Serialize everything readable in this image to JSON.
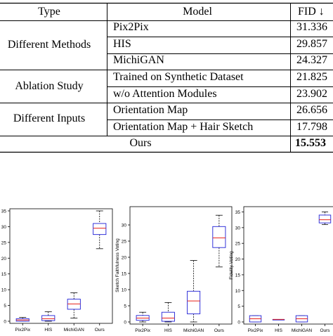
{
  "table": {
    "headers": {
      "type": "Type",
      "model": "Model",
      "fid": "FID ↓"
    },
    "groups": [
      {
        "type": "Different Methods",
        "rows": [
          {
            "model": "Pix2Pix",
            "fid": "31.336"
          },
          {
            "model": "HIS",
            "fid": "29.857"
          },
          {
            "model": "MichiGAN",
            "fid": "24.327"
          }
        ]
      },
      {
        "type": "Ablation Study",
        "rows": [
          {
            "model": "Trained on Synthetic Dataset",
            "fid": "21.825"
          },
          {
            "model": "w/o Attention Modules",
            "fid": "23.902"
          }
        ]
      },
      {
        "type": "Different Inputs",
        "rows": [
          {
            "model": "Orientation Map",
            "fid": "26.656"
          },
          {
            "model": "Orientation Map + Hair Sketch",
            "fid": "17.798"
          }
        ]
      }
    ],
    "final": {
      "label": "Ours",
      "fid": "15.553"
    }
  },
  "chart_data": [
    {
      "type": "box",
      "ylabel": "",
      "ylim": [
        0,
        35
      ],
      "yticks": [
        0,
        5,
        10,
        15,
        20,
        25,
        30,
        35
      ],
      "categories": [
        "Pix2Pix",
        "HIS",
        "MichiGAN",
        "Ours"
      ],
      "boxes": [
        {
          "min": 0,
          "q1": 0,
          "median": 0.4,
          "q3": 0.8,
          "max": 1.2
        },
        {
          "min": 0,
          "q1": 0.2,
          "median": 0.8,
          "q3": 1.8,
          "max": 3
        },
        {
          "min": 1,
          "q1": 3.8,
          "median": 5.5,
          "q3": 7,
          "max": 9
        },
        {
          "min": 23,
          "q1": 27.5,
          "median": 29.5,
          "q3": 31,
          "max": 35
        }
      ]
    },
    {
      "type": "box",
      "ylabel": "Sketch Faithfulness Voting",
      "ylim": [
        0,
        35
      ],
      "yticks": [
        0,
        5,
        10,
        15,
        20,
        25,
        30
      ],
      "categories": [
        "Pix2Pix",
        "HIS",
        "MichiGAN",
        "Ours"
      ],
      "boxes": [
        {
          "min": 0,
          "q1": 0.5,
          "median": 1.2,
          "q3": 2,
          "max": 3
        },
        {
          "min": 0,
          "q1": 0.2,
          "median": 1.2,
          "q3": 3,
          "max": 6
        },
        {
          "min": 0,
          "q1": 2.5,
          "median": 6.5,
          "q3": 9.5,
          "max": 19
        },
        {
          "min": 17,
          "q1": 23,
          "median": 26,
          "q3": 29.5,
          "max": 33
        }
      ]
    },
    {
      "type": "box",
      "ylabel": "Fidelity Voting",
      "ylim": [
        0,
        36
      ],
      "yticks": [
        0,
        5,
        10,
        15,
        20,
        25,
        30,
        35
      ],
      "categories": [
        "Pix2Pix",
        "HIS",
        "MichiGAN",
        "Ours"
      ],
      "boxes": [
        {
          "min": 0,
          "q1": 0,
          "median": 1,
          "q3": 2,
          "max": 2
        },
        {
          "min": 0.8,
          "q1": 0.8,
          "median": 0.8,
          "q3": 0.8,
          "max": 0.8
        },
        {
          "min": 0,
          "q1": 0,
          "median": 1,
          "q3": 2,
          "max": 2
        },
        {
          "min": 31,
          "q1": 31.5,
          "median": 32.5,
          "q3": 34,
          "max": 35
        }
      ]
    }
  ]
}
